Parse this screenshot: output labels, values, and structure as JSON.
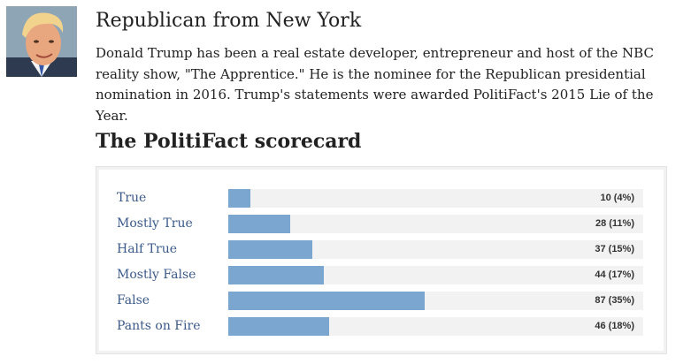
{
  "profile": {
    "party_line": "Republican from New York",
    "bio": "Donald Trump has been a real estate developer, entrepreneur and host of the NBC reality show, \"The Apprentice.\" He is the nominee for the Republican presidential nomination in 2016. Trump's statements were awarded PolitiFact's 2015 Lie of the Year.",
    "portrait_icon": "person-portrait-icon"
  },
  "scorecard": {
    "title": "The PolitiFact scorecard",
    "bar_color": "#7aa6d0",
    "track_color": "#f2f2f2",
    "link_color": "#3b5a8a",
    "rows": [
      {
        "label": "True",
        "count": "10 (4%)",
        "percent": 4
      },
      {
        "label": "Mostly True",
        "count": "28 (11%)",
        "percent": 11
      },
      {
        "label": "Half True",
        "count": "37 (15%)",
        "percent": 15
      },
      {
        "label": "Mostly False",
        "count": "44 (17%)",
        "percent": 17
      },
      {
        "label": "False",
        "count": "87 (35%)",
        "percent": 35
      },
      {
        "label": "Pants on Fire",
        "count": "46 (18%)",
        "percent": 18
      }
    ]
  }
}
